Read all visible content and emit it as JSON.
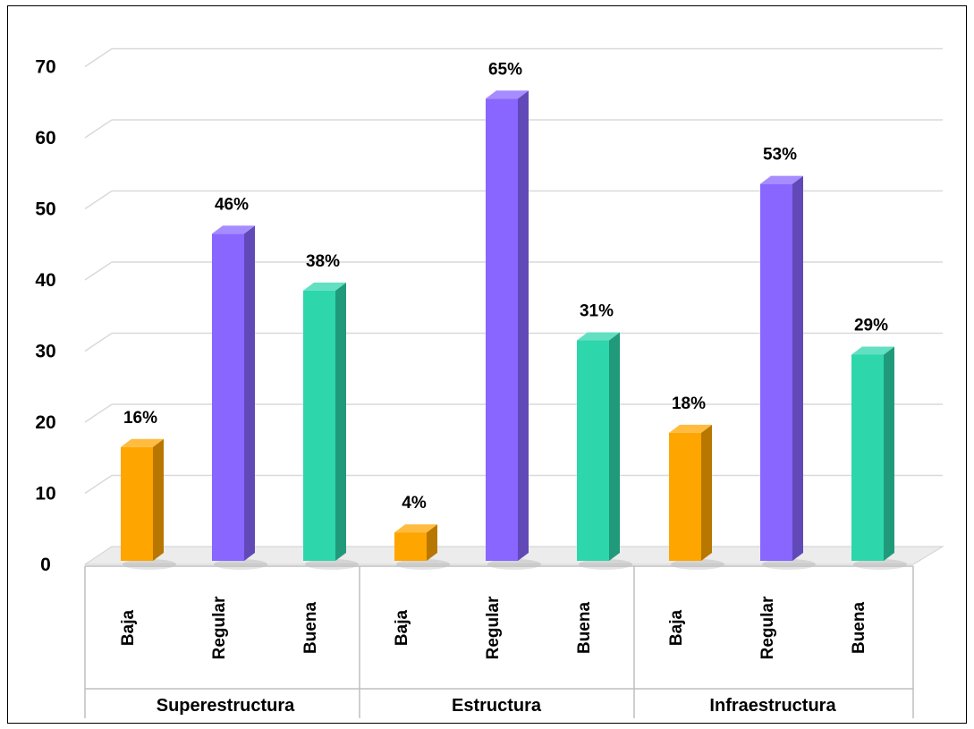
{
  "chart_data": {
    "type": "bar",
    "ylim": [
      0,
      70
    ],
    "yticks": [
      0,
      10,
      20,
      30,
      40,
      50,
      60,
      70
    ],
    "grid": true,
    "legend": "none",
    "colors": {
      "Baja": "#FFA500",
      "Regular": "#8866FF",
      "Buena": "#2ED6AC"
    },
    "groups": [
      {
        "name": "Superestructura",
        "bars": [
          {
            "category": "Baja",
            "value": 16,
            "label": "16%"
          },
          {
            "category": "Regular",
            "value": 46,
            "label": "46%"
          },
          {
            "category": "Buena",
            "value": 38,
            "label": "38%"
          }
        ]
      },
      {
        "name": "Estructura",
        "bars": [
          {
            "category": "Baja",
            "value": 4,
            "label": "4%"
          },
          {
            "category": "Regular",
            "value": 65,
            "label": "65%"
          },
          {
            "category": "Buena",
            "value": 31,
            "label": "31%"
          }
        ]
      },
      {
        "name": "Infraestructura",
        "bars": [
          {
            "category": "Baja",
            "value": 18,
            "label": "18%"
          },
          {
            "category": "Regular",
            "value": 53,
            "label": "53%"
          },
          {
            "category": "Buena",
            "value": 29,
            "label": "29%"
          }
        ]
      }
    ]
  }
}
